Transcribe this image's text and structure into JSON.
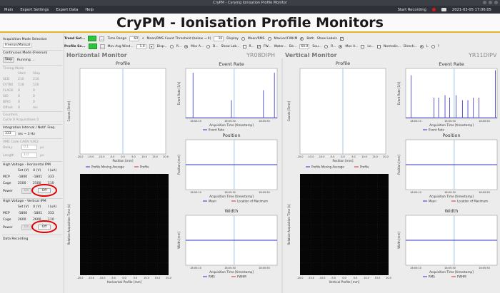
{
  "window": {
    "title": "CryPM - Cyrying Ionisation Profile Monitor"
  },
  "menu": {
    "items": [
      "Main",
      "Expert Settings",
      "Expert Data",
      "Help"
    ],
    "record_label": "Start Recording",
    "timestamp": "2021-03-05  17:06:05"
  },
  "banner": {
    "title": "CryPM - Ionisation Profile Monitors"
  },
  "sidebar": {
    "acq_mode_label": "Acquisition Mode Selection",
    "acq_mode_value": "Freerun/Manual",
    "continuous_label": "Continuous Mode (Freerun)",
    "stop_label": "Stop",
    "running_label": "Running ...",
    "timing_label": "Timing Mode",
    "start_label": "Start",
    "stop_col_label": "Stop",
    "timing_rows": [
      {
        "name": "SED",
        "start": "210",
        "stop": "210"
      },
      {
        "name": "EVT80",
        "start": "518",
        "stop": "520"
      },
      {
        "name": "FLAG0",
        "start": "0",
        "stop": "0"
      },
      {
        "name": "SIO",
        "start": "0",
        "stop": "0"
      },
      {
        "name": "BPIO",
        "start": "0",
        "stop": "0"
      },
      {
        "name": "Offset",
        "start": "0",
        "stop": "ms"
      }
    ],
    "counters_label": "Counters",
    "counters_value": "Cycle 0    Acquisitions 0",
    "integration_label": "Integration Interval / Notif. Freq.",
    "integration_value": "333",
    "integration_unit": "ms ~ 3 Hz",
    "vme_label": "VME Gate CAEN V462",
    "delay_label": "Delay",
    "delay_value": "0.1",
    "delay_unit": "µs",
    "length_label": "Length",
    "length_value": "1.0",
    "length_unit": "µs",
    "hv_h_label": "High Voltage - Horizontal IPM",
    "hv_v_label": "High Voltage - Vertical IPM",
    "hv_cols": [
      "Set (V)",
      "U (V)",
      "I (uA)"
    ],
    "hv_h_rows": [
      {
        "name": "MCP",
        "set": "-1800",
        "u": "-1801",
        "i": "333"
      },
      {
        "name": "Cage",
        "set": "2500",
        "u": "2500",
        "i": "110"
      }
    ],
    "hv_v_rows": [
      {
        "name": "MCP",
        "set": "-1800",
        "u": "-1801",
        "i": "333"
      },
      {
        "name": "Cage",
        "set": "2600",
        "u": "2600",
        "i": "110"
      }
    ],
    "power_label": "Power",
    "on_label": "On",
    "off_label": "Off",
    "data_recording_label": "Data Recording"
  },
  "controls": {
    "trend_label": "Trend Set...",
    "profile_label": "Profile Se...",
    "time_range_label": "Time Range",
    "time_range_value": "60",
    "time_range_unit": "s",
    "mean_rms_threshold_label": "Mean/RMS Count Threshold (below → 0)",
    "mean_rms_threshold_value": "10",
    "display_label": "Display",
    "display_options": [
      "Mean/RMS",
      "MaxLoc/FWHM",
      "Both"
    ],
    "show_labels_label": "Show Labels",
    "mov_avg_label": "Mov Avg Wind...",
    "mov_avg_value": "1.0",
    "disp_label": "Disp...",
    "opt_r": "R...",
    "opt_mova": "Mov A...",
    "opt_b": "B...",
    "show_lab_label": "Show Lab...",
    "opt_fw": "FW...",
    "water_label": "Water...",
    "de_label": "De...",
    "de_value": "60.0",
    "sou_label": "Sou...",
    "lo_label": "Lo...",
    "normalis_label": "Normalis...",
    "directi_label": "Directi...",
    "opt_l": "L",
    "opt_q": "?"
  },
  "horizontal": {
    "title": "Horizontal Monitor",
    "device": "YR08DIPH",
    "profile_axis": "Horizontal Profile [mm]"
  },
  "vertical": {
    "title": "Vertical Monitor",
    "device": "YR11DIPV",
    "profile_axis": "Vertical Profile [mm]"
  },
  "plots": {
    "profile_title": "Profile",
    "profile_ylabel": "Counts [5mm]",
    "profile_xlabel": "Position [mm]",
    "profile_legend": [
      "Profile Moving Average",
      "Profile"
    ],
    "profile_xticks": [
      "-20.0",
      "-15.0",
      "-10.0",
      "-5.0",
      "0.0",
      "5.0",
      "10.0",
      "15.0",
      "20.0"
    ],
    "event_title": "Event Rate",
    "event_ylabel": "Event Rate [1/s]",
    "event_xlabel": "Acquisition Time [timestamp]",
    "event_legend": "Event Rate",
    "position_title": "Position",
    "position_ylabel": "Position [mm]",
    "position_legend": [
      "Mean",
      "Location of Maximum"
    ],
    "width_title": "Width",
    "width_ylabel": "Width [mm]",
    "width_legend": [
      "RMS",
      "FWHM"
    ],
    "time_ticks": [
      "18:05:10",
      "18:05:30",
      "18:05:50"
    ],
    "waterfall_ylabel": "Relative Acquisition Time [s]",
    "rel_ticks": [
      "-55.0",
      "-45.0",
      "-35.0",
      "-25.0",
      "-15.0",
      "-5.0"
    ]
  },
  "colors": {
    "accent_line": "#e5b324",
    "series_blue": "#3030c8",
    "series_red": "#d03030",
    "record_dot": "#e01515",
    "highlight_oval": "#e00000"
  }
}
